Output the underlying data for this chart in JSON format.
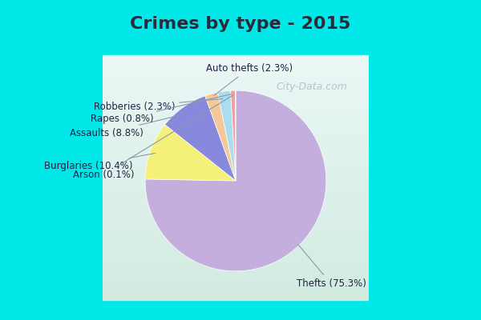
{
  "title": "Crimes by type - 2015",
  "values": [
    75.3,
    10.4,
    8.8,
    2.3,
    2.3,
    0.8,
    0.1
  ],
  "colors": [
    "#c4aedd",
    "#f5f07a",
    "#8888dd",
    "#f5c89a",
    "#aaddee",
    "#f0a0a0",
    "#aaddaa"
  ],
  "label_texts": [
    "Thefts (75.3%)",
    "Burglaries (10.4%)",
    "Assaults (8.8%)",
    "Auto thefts (2.3%)",
    "Robberies (2.3%)",
    "Rapes (0.8%)",
    "Arson (0.1%)"
  ],
  "background_top": "#00e8e8",
  "background_main_top": "#d8eee8",
  "background_main_bot": "#e8eeff",
  "title_fontsize": 16,
  "startangle": 90,
  "label_fontsize": 8.5,
  "watermark": "City-Data.com"
}
